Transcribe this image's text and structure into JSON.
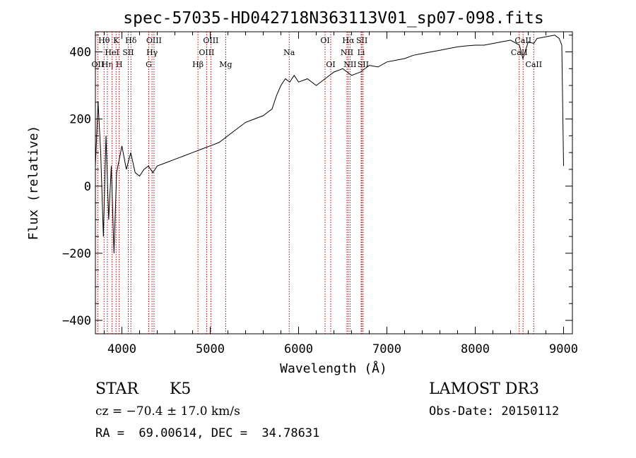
{
  "chart_data": {
    "type": "line",
    "title": "spec-57035-HD042718N363113V01_sp07-098.fits",
    "xlabel": "Wavelength (Å)",
    "ylabel": "Flux (relative)",
    "xlim": [
      3700,
      9100
    ],
    "ylim": [
      -440,
      460
    ],
    "x_ticks": [
      4000,
      5000,
      6000,
      7000,
      8000,
      9000
    ],
    "x_tick_labels": [
      "4000",
      "5000",
      "6000",
      "7000",
      "8000",
      "9000"
    ],
    "y_ticks": [
      -400,
      -200,
      0,
      200,
      400
    ],
    "y_tick_labels": [
      "−400",
      "−200",
      "0",
      "200",
      "400"
    ],
    "grid": false,
    "series": [
      {
        "name": "flux",
        "x": [
          3700,
          3730,
          3760,
          3790,
          3820,
          3850,
          3880,
          3910,
          3940,
          3970,
          4000,
          4050,
          4100,
          4150,
          4200,
          4250,
          4300,
          4350,
          4400,
          4500,
          4600,
          4700,
          4800,
          4900,
          5000,
          5100,
          5200,
          5300,
          5400,
          5500,
          5600,
          5700,
          5750,
          5800,
          5850,
          5900,
          5950,
          6000,
          6100,
          6200,
          6300,
          6400,
          6500,
          6600,
          6700,
          6800,
          6900,
          7000,
          7100,
          7200,
          7300,
          7400,
          7500,
          7600,
          7700,
          7800,
          7900,
          8000,
          8100,
          8200,
          8300,
          8400,
          8500,
          8540,
          8600,
          8662,
          8700,
          8800,
          8900,
          8950,
          8980,
          9000
        ],
        "y": [
          60,
          250,
          100,
          -150,
          150,
          -100,
          60,
          -200,
          40,
          80,
          120,
          50,
          100,
          40,
          30,
          50,
          60,
          40,
          60,
          70,
          80,
          90,
          100,
          110,
          120,
          130,
          150,
          170,
          190,
          200,
          210,
          230,
          270,
          300,
          320,
          310,
          330,
          310,
          320,
          300,
          320,
          340,
          350,
          330,
          340,
          360,
          355,
          370,
          375,
          380,
          390,
          395,
          400,
          405,
          410,
          415,
          418,
          420,
          420,
          425,
          430,
          435,
          420,
          380,
          430,
          425,
          440,
          445,
          450,
          440,
          420,
          60
        ]
      }
    ],
    "line_markers": [
      {
        "label": "OII",
        "x": 3727,
        "row": 3
      },
      {
        "label": "Hθ",
        "x": 3798,
        "row": 1
      },
      {
        "label": "Hη",
        "x": 3835,
        "row": 3
      },
      {
        "label": "HeI",
        "x": 3889,
        "row": 2
      },
      {
        "label": "K",
        "x": 3934,
        "row": 1
      },
      {
        "label": "H",
        "x": 3969,
        "row": 3
      },
      {
        "label": "SII",
        "x": 4072,
        "row": 2
      },
      {
        "label": "Hδ",
        "x": 4102,
        "row": 1
      },
      {
        "label": "G",
        "x": 4304,
        "row": 3
      },
      {
        "label": "Hγ",
        "x": 4341,
        "row": 2
      },
      {
        "label": "OIII",
        "x": 4363,
        "row": 1
      },
      {
        "label": "Hβ",
        "x": 4861,
        "row": 3
      },
      {
        "label": "OIII",
        "x": 4959,
        "row": 2
      },
      {
        "label": "OIII",
        "x": 5007,
        "row": 1
      },
      {
        "label": "Mg",
        "x": 5175,
        "row": 3
      },
      {
        "label": "Na",
        "x": 5894,
        "row": 2
      },
      {
        "label": "OI",
        "x": 6300,
        "row": 1
      },
      {
        "label": "OI",
        "x": 6364,
        "row": 3
      },
      {
        "label": "NII",
        "x": 6548,
        "row": 2
      },
      {
        "label": "Hα",
        "x": 6563,
        "row": 1
      },
      {
        "label": "NII",
        "x": 6583,
        "row": 3
      },
      {
        "label": "SII",
        "x": 6717,
        "row": 1
      },
      {
        "label": "Li",
        "x": 6708,
        "row": 2
      },
      {
        "label": "SII",
        "x": 6731,
        "row": 3
      },
      {
        "label": "CaII",
        "x": 8498,
        "row": 2
      },
      {
        "label": "CaII",
        "x": 8542,
        "row": 1
      },
      {
        "label": "CaII",
        "x": 8662,
        "row": 3
      }
    ]
  },
  "info": {
    "object_class": "STAR",
    "subclass": "K5",
    "survey": "LAMOST DR3",
    "cz_line": "cz = −70.4 ± 17.0 km/s",
    "obs_date_line": "Obs-Date: 20150112",
    "coords_line": "RA =  69.00614, DEC =  34.78631"
  }
}
